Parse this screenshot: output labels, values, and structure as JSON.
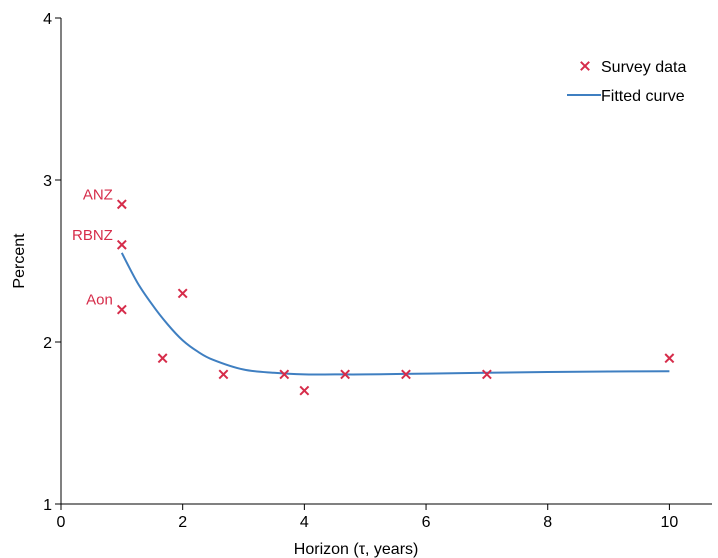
{
  "chart_data": {
    "type": "scatter",
    "xlabel": "Horizon (τ, years)",
    "ylabel": "Percent",
    "xlim": [
      0,
      10.7
    ],
    "ylim": [
      1,
      4
    ],
    "x_ticks": [
      "0",
      "2",
      "4",
      "6",
      "8",
      "10"
    ],
    "y_ticks": [
      "1",
      "2",
      "3",
      "4"
    ],
    "grid": false,
    "legend": {
      "placement": "top-right"
    },
    "colors": {
      "points": "#d62c4a",
      "curve": "#3f7fc1",
      "axis": "#000000"
    },
    "series": [
      {
        "name": "Survey data",
        "type": "scatter",
        "points": [
          {
            "x": 1.0,
            "y": 2.85,
            "label": "ANZ"
          },
          {
            "x": 1.0,
            "y": 2.6,
            "label": "RBNZ"
          },
          {
            "x": 1.0,
            "y": 2.2,
            "label": "Aon"
          },
          {
            "x": 1.67,
            "y": 1.9
          },
          {
            "x": 2.0,
            "y": 2.3
          },
          {
            "x": 2.67,
            "y": 1.8
          },
          {
            "x": 3.67,
            "y": 1.8
          },
          {
            "x": 4.0,
            "y": 1.7
          },
          {
            "x": 4.67,
            "y": 1.8
          },
          {
            "x": 5.67,
            "y": 1.8
          },
          {
            "x": 7.0,
            "y": 1.8
          },
          {
            "x": 10.0,
            "y": 1.9
          }
        ]
      },
      {
        "name": "Fitted curve",
        "type": "line",
        "x": [
          1.0,
          1.25,
          1.5,
          1.75,
          2.0,
          2.25,
          2.5,
          3.0,
          3.5,
          4.0,
          4.5,
          5.0,
          6.0,
          7.0,
          8.0,
          9.0,
          10.0
        ],
        "y": [
          2.55,
          2.37,
          2.23,
          2.11,
          2.01,
          1.94,
          1.89,
          1.83,
          1.81,
          1.8,
          1.8,
          1.8,
          1.805,
          1.81,
          1.815,
          1.818,
          1.82
        ]
      }
    ]
  }
}
